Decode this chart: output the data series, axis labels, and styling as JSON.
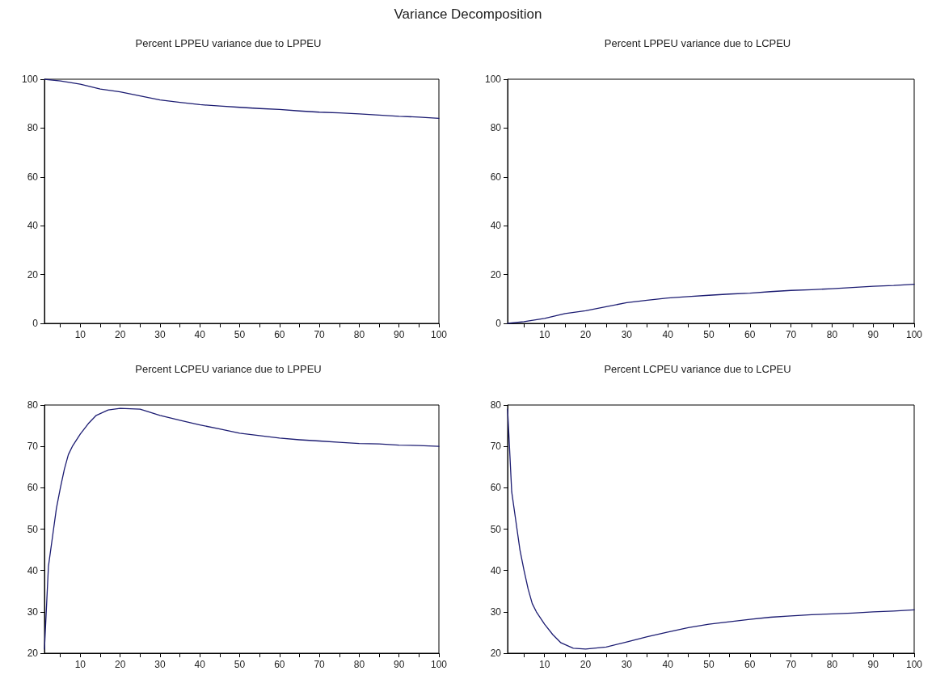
{
  "chart_data": [
    {
      "type": "line",
      "title": "Percent LPPEU variance due to LPPEU",
      "annotations": [
        "Variance Decomposition"
      ],
      "x": [
        1,
        5,
        10,
        15,
        20,
        25,
        30,
        35,
        40,
        45,
        50,
        55,
        60,
        65,
        70,
        75,
        80,
        85,
        90,
        95,
        100
      ],
      "series": [
        {
          "color": "#1c1c72",
          "values": [
            100,
            99.3,
            98,
            96,
            94.8,
            93.2,
            91.5,
            90.5,
            89.6,
            89,
            88.5,
            88,
            87.6,
            87,
            86.5,
            86.2,
            85.8,
            85.3,
            84.8,
            84.5,
            84
          ]
        }
      ],
      "xlim": [
        1,
        100
      ],
      "xticks": [
        {
          "value": 5,
          "label": null
        },
        10,
        {
          "value": 15,
          "label": null
        },
        20,
        {
          "value": 25,
          "label": null
        },
        30,
        {
          "value": 35,
          "label": null
        },
        40,
        {
          "value": 45,
          "label": null
        },
        50,
        {
          "value": 55,
          "label": null
        },
        60,
        {
          "value": 65,
          "label": null
        },
        70,
        {
          "value": 75,
          "label": null
        },
        80,
        {
          "value": 85,
          "label": null
        },
        90,
        {
          "value": 95,
          "label": null
        },
        100
      ],
      "ylim": [
        0,
        100
      ],
      "yticks": [
        0,
        20,
        40,
        60,
        80,
        100
      ],
      "grid": false,
      "marker": "none",
      "line_style": "solid"
    },
    {
      "type": "line",
      "title": "Percent LPPEU variance due to LCPEU",
      "x": [
        1,
        5,
        10,
        15,
        20,
        25,
        30,
        35,
        40,
        45,
        50,
        55,
        60,
        65,
        70,
        75,
        80,
        85,
        90,
        95,
        100
      ],
      "series": [
        {
          "color": "#1c1c72",
          "values": [
            0,
            0.7,
            2,
            4,
            5.2,
            6.8,
            8.5,
            9.5,
            10.4,
            11,
            11.5,
            12,
            12.4,
            13,
            13.5,
            13.8,
            14.2,
            14.7,
            15.2,
            15.5,
            16
          ]
        }
      ],
      "xlim": [
        1,
        100
      ],
      "xticks": [
        {
          "value": 5,
          "label": null
        },
        10,
        {
          "value": 15,
          "label": null
        },
        20,
        {
          "value": 25,
          "label": null
        },
        30,
        {
          "value": 35,
          "label": null
        },
        40,
        {
          "value": 45,
          "label": null
        },
        50,
        {
          "value": 55,
          "label": null
        },
        60,
        {
          "value": 65,
          "label": null
        },
        70,
        {
          "value": 75,
          "label": null
        },
        80,
        {
          "value": 85,
          "label": null
        },
        90,
        {
          "value": 95,
          "label": null
        },
        100
      ],
      "ylim": [
        0,
        100
      ],
      "yticks": [
        0,
        20,
        40,
        60,
        80,
        100
      ],
      "grid": false,
      "marker": "none",
      "line_style": "solid"
    },
    {
      "type": "line",
      "title": "Percent LCPEU variance due to LPPEU",
      "x": [
        1,
        2,
        3,
        4,
        5,
        6,
        7,
        8,
        10,
        12,
        14,
        17,
        20,
        25,
        30,
        35,
        40,
        45,
        50,
        55,
        60,
        65,
        70,
        75,
        80,
        85,
        90,
        95,
        100
      ],
      "series": [
        {
          "color": "#1c1c72",
          "values": [
            21,
            41,
            48,
            55,
            60,
            64.5,
            68,
            70,
            73,
            75.5,
            77.5,
            78.8,
            79.2,
            79,
            77.5,
            76.3,
            75.2,
            74.2,
            73.2,
            72.6,
            72,
            71.6,
            71.3,
            71,
            70.7,
            70.6,
            70.3,
            70.2,
            70
          ]
        }
      ],
      "xlim": [
        1,
        100
      ],
      "xticks": [
        {
          "value": 5,
          "label": null
        },
        10,
        {
          "value": 15,
          "label": null
        },
        20,
        {
          "value": 25,
          "label": null
        },
        30,
        {
          "value": 35,
          "label": null
        },
        40,
        {
          "value": 45,
          "label": null
        },
        50,
        {
          "value": 55,
          "label": null
        },
        60,
        {
          "value": 65,
          "label": null
        },
        70,
        {
          "value": 75,
          "label": null
        },
        80,
        {
          "value": 85,
          "label": null
        },
        90,
        {
          "value": 95,
          "label": null
        },
        100
      ],
      "ylim": [
        20,
        80
      ],
      "yticks": [
        20,
        30,
        40,
        50,
        60,
        70,
        80
      ],
      "grid": false,
      "marker": "none",
      "line_style": "solid"
    },
    {
      "type": "line",
      "title": "Percent LCPEU variance due to LCPEU",
      "x": [
        1,
        2,
        3,
        4,
        5,
        6,
        7,
        8,
        10,
        12,
        14,
        17,
        20,
        25,
        30,
        35,
        40,
        45,
        50,
        55,
        60,
        65,
        70,
        75,
        80,
        85,
        90,
        95,
        100
      ],
      "series": [
        {
          "color": "#1c1c72",
          "values": [
            79,
            59,
            52,
            45,
            40,
            35.5,
            32,
            30,
            27,
            24.5,
            22.5,
            21.2,
            21,
            21.5,
            22.7,
            24,
            25.1,
            26.2,
            27,
            27.6,
            28.2,
            28.7,
            29,
            29.3,
            29.5,
            29.7,
            30,
            30.2,
            30.5
          ]
        }
      ],
      "xlim": [
        1,
        100
      ],
      "xticks": [
        {
          "value": 5,
          "label": null
        },
        10,
        {
          "value": 15,
          "label": null
        },
        20,
        {
          "value": 25,
          "label": null
        },
        30,
        {
          "value": 35,
          "label": null
        },
        40,
        {
          "value": 45,
          "label": null
        },
        50,
        {
          "value": 55,
          "label": null
        },
        60,
        {
          "value": 65,
          "label": null
        },
        70,
        {
          "value": 75,
          "label": null
        },
        80,
        {
          "value": 85,
          "label": null
        },
        90,
        {
          "value": 95,
          "label": null
        },
        100
      ],
      "ylim": [
        20,
        80
      ],
      "yticks": [
        20,
        30,
        40,
        50,
        60,
        70,
        80
      ],
      "grid": false,
      "marker": "none",
      "line_style": "solid"
    }
  ]
}
